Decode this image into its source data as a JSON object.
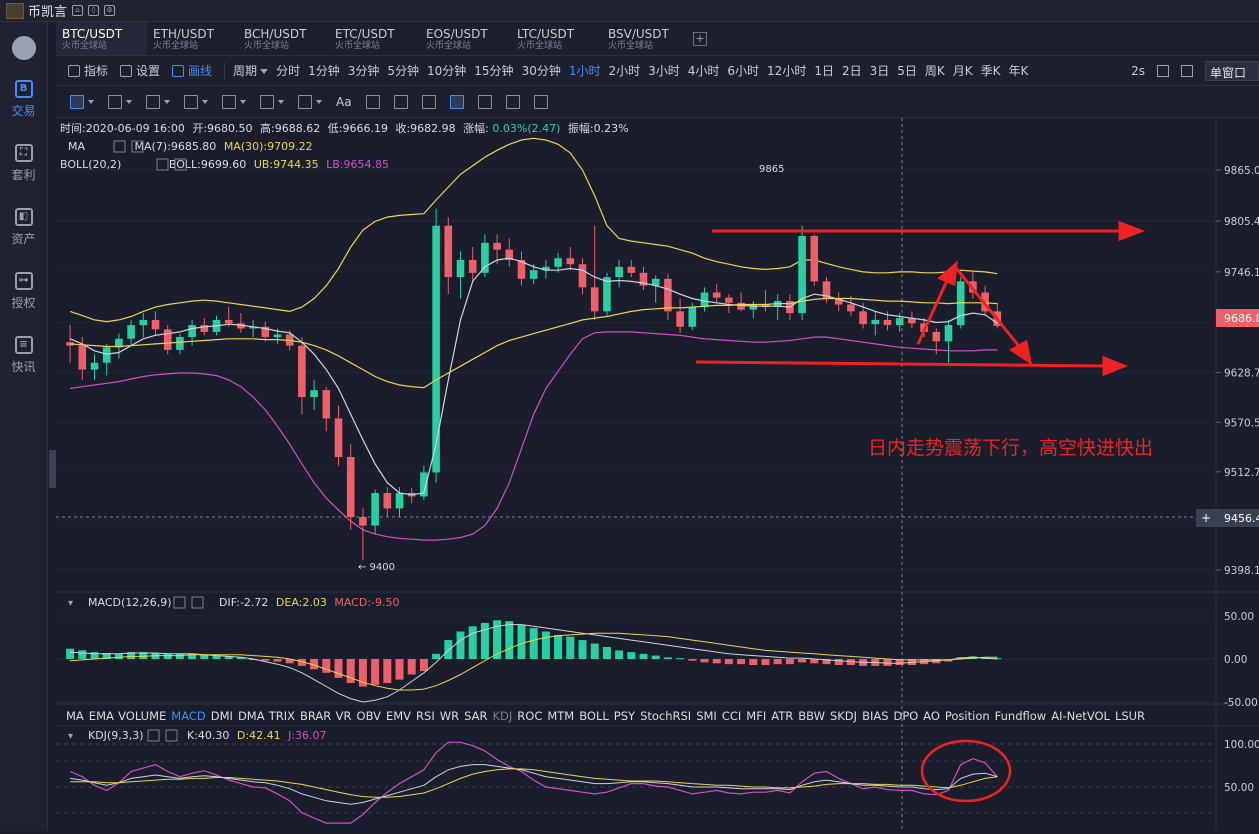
{
  "app_title": "币凯言",
  "sidebar": [
    {
      "icon": "exchange-icon",
      "glyph": "B",
      "label": "交易",
      "active": true
    },
    {
      "icon": "arbitrage-icon",
      "glyph": "⛶",
      "label": "套利",
      "active": false
    },
    {
      "icon": "assets-icon",
      "glyph": "◧",
      "label": "资产",
      "active": false
    },
    {
      "icon": "authorize-icon",
      "glyph": "⊶",
      "label": "授权",
      "active": false
    },
    {
      "icon": "news-icon",
      "glyph": "≡",
      "label": "快讯",
      "active": false
    }
  ],
  "tabs": [
    {
      "symbol": "BTC/USDT",
      "sub": "火币全球站",
      "active": true
    },
    {
      "symbol": "ETH/USDT",
      "sub": "火币全球站",
      "active": false
    },
    {
      "symbol": "BCH/USDT",
      "sub": "火币全球站",
      "active": false
    },
    {
      "symbol": "ETC/USDT",
      "sub": "火币全球站",
      "active": false
    },
    {
      "symbol": "EOS/USDT",
      "sub": "火币全球站",
      "active": false
    },
    {
      "symbol": "LTC/USDT",
      "sub": "火币全球站",
      "active": false
    },
    {
      "symbol": "BSV/USDT",
      "sub": "火币全球站",
      "active": false
    }
  ],
  "toolbar": {
    "indicator": "指标",
    "settings": "设置",
    "draw": "画线",
    "period": "周期",
    "periods": [
      "分时",
      "1分钟",
      "3分钟",
      "5分钟",
      "10分钟",
      "15分钟",
      "30分钟",
      "1小时",
      "2小时",
      "3小时",
      "4小时",
      "6小时",
      "12小时",
      "1日",
      "2日",
      "3日",
      "5日",
      "周K",
      "月K",
      "季K",
      "年K"
    ],
    "active_period": "1小时",
    "refresh": "2s",
    "window": "单窗口"
  },
  "drawbar": {
    "text_tool": "Aa"
  },
  "info": {
    "time": "时间:2020-06-09 16:00",
    "open": "开:9680.50",
    "high": "高:9688.62",
    "low": "低:9666.19",
    "close": "收:9682.98",
    "change_label": "涨幅:",
    "change_value": "0.03%(2.47)",
    "amp": "振幅:0.23%"
  },
  "ma_line": {
    "name": "MA",
    "ma7": "MA(7):9685.80",
    "ma30": "MA(30):9709.22"
  },
  "boll_line": {
    "name": "BOLL(20,2)",
    "boll": "BOLL:9699.60",
    "ub": "UB:9744.35",
    "lb": "LB:9654.85"
  },
  "price_axis": [
    "9865.0",
    "9805.4",
    "9746.1",
    "9686.8",
    "9628.7",
    "9570.5",
    "9512.7",
    "9456.4",
    "9398.1"
  ],
  "current_price": "9686.8",
  "cursor_price": "9456.4",
  "high_mark": "9865",
  "low_mark": "← 9400",
  "annotation": "日内走势震荡下行，高空快进快出",
  "macd": {
    "name": "MACD(12,26,9)",
    "dif": "DIF:-2.72",
    "dea": "DEA:2.03",
    "macd": "MACD:-9.50",
    "axis": [
      "50.00",
      "0.00",
      "-50.00"
    ]
  },
  "indicators": [
    "MA",
    "EMA",
    "VOLUME",
    "MACD",
    "DMI",
    "DMA",
    "TRIX",
    "BRAR",
    "VR",
    "OBV",
    "EMV",
    "RSI",
    "WR",
    "SAR",
    "KDJ",
    "ROC",
    "MTM",
    "BOLL",
    "PSY",
    "StochRSI",
    "SMI",
    "CCI",
    "MFI",
    "ATR",
    "BBW",
    "SKDJ",
    "BIAS",
    "DPO",
    "AO",
    "Position",
    "Fundflow",
    "AI-NetVOL",
    "LSUR"
  ],
  "active_indicator": "MACD",
  "kdj": {
    "name": "KDJ(9,3,3)",
    "k": "K:40.30",
    "d": "D:42.41",
    "j": "J:36.07",
    "axis": [
      "100.00",
      "50.00"
    ]
  },
  "colors": {
    "up": "#26d0a0",
    "down": "#f05e6a",
    "accent": "#4a8cf7",
    "ma7": "#d0d4e0",
    "ma30": "#e8d84a",
    "boll_mid": "#d0d4e0",
    "ub": "#e8d84a",
    "lb": "#d24fc8",
    "arrow": "#ee2222"
  },
  "chart_data": {
    "type": "candlestick",
    "interval": "1小时",
    "date": "2020-06-09",
    "candles": [
      [
        9664,
        9684,
        9640,
        9660
      ],
      [
        9660,
        9670,
        9620,
        9632
      ],
      [
        9632,
        9650,
        9620,
        9640
      ],
      [
        9640,
        9662,
        9625,
        9658
      ],
      [
        9658,
        9674,
        9645,
        9668
      ],
      [
        9668,
        9690,
        9660,
        9684
      ],
      [
        9684,
        9698,
        9670,
        9690
      ],
      [
        9690,
        9700,
        9672,
        9679
      ],
      [
        9679,
        9684,
        9650,
        9655
      ],
      [
        9655,
        9674,
        9650,
        9670
      ],
      [
        9670,
        9690,
        9660,
        9684
      ],
      [
        9684,
        9692,
        9672,
        9676
      ],
      [
        9676,
        9695,
        9672,
        9690
      ],
      [
        9690,
        9705,
        9682,
        9686
      ],
      [
        9686,
        9698,
        9675,
        9680
      ],
      [
        9680,
        9690,
        9670,
        9682
      ],
      [
        9682,
        9688,
        9665,
        9670
      ],
      [
        9670,
        9680,
        9662,
        9673
      ],
      [
        9673,
        9678,
        9655,
        9660
      ],
      [
        9660,
        9670,
        9580,
        9600
      ],
      [
        9600,
        9620,
        9585,
        9608
      ],
      [
        9608,
        9612,
        9560,
        9575
      ],
      [
        9575,
        9590,
        9520,
        9530
      ],
      [
        9530,
        9545,
        9445,
        9460
      ],
      [
        9460,
        9470,
        9410,
        9450
      ],
      [
        9450,
        9492,
        9440,
        9488
      ],
      [
        9488,
        9495,
        9460,
        9470
      ],
      [
        9470,
        9495,
        9460,
        9488
      ],
      [
        9488,
        9494,
        9476,
        9484
      ],
      [
        9484,
        9520,
        9480,
        9512
      ],
      [
        9512,
        9820,
        9500,
        9800
      ],
      [
        9800,
        9810,
        9720,
        9740
      ],
      [
        9740,
        9770,
        9715,
        9760
      ],
      [
        9760,
        9775,
        9735,
        9745
      ],
      [
        9745,
        9790,
        9740,
        9780
      ],
      [
        9780,
        9790,
        9755,
        9772
      ],
      [
        9772,
        9785,
        9752,
        9760
      ],
      [
        9760,
        9770,
        9730,
        9738
      ],
      [
        9738,
        9755,
        9732,
        9748
      ],
      [
        9748,
        9760,
        9738,
        9752
      ],
      [
        9752,
        9768,
        9745,
        9762
      ],
      [
        9762,
        9775,
        9748,
        9755
      ],
      [
        9755,
        9762,
        9720,
        9728
      ],
      [
        9728,
        9800,
        9690,
        9700
      ],
      [
        9700,
        9745,
        9695,
        9740
      ],
      [
        9740,
        9760,
        9728,
        9752
      ],
      [
        9752,
        9760,
        9740,
        9745
      ],
      [
        9745,
        9752,
        9725,
        9730
      ],
      [
        9730,
        9742,
        9710,
        9738
      ],
      [
        9738,
        9744,
        9690,
        9700
      ],
      [
        9700,
        9715,
        9675,
        9682
      ],
      [
        9682,
        9710,
        9678,
        9705
      ],
      [
        9705,
        9728,
        9700,
        9722
      ],
      [
        9722,
        9732,
        9710,
        9716
      ],
      [
        9716,
        9720,
        9698,
        9710
      ],
      [
        9710,
        9722,
        9700,
        9702
      ],
      [
        9702,
        9712,
        9692,
        9708
      ],
      [
        9708,
        9725,
        9700,
        9705
      ],
      [
        9705,
        9720,
        9690,
        9712
      ],
      [
        9712,
        9720,
        9690,
        9698
      ],
      [
        9698,
        9800,
        9690,
        9788
      ],
      [
        9788,
        9790,
        9730,
        9735
      ],
      [
        9735,
        9740,
        9710,
        9715
      ],
      [
        9715,
        9722,
        9700,
        9708
      ],
      [
        9708,
        9718,
        9695,
        9700
      ],
      [
        9700,
        9710,
        9680,
        9685
      ],
      [
        9685,
        9700,
        9672,
        9690
      ],
      [
        9690,
        9700,
        9678,
        9684
      ],
      [
        9684,
        9698,
        9676,
        9692
      ],
      [
        9692,
        9700,
        9680,
        9686
      ],
      [
        9686,
        9692,
        9670,
        9676
      ],
      [
        9676,
        9680,
        9650,
        9665
      ],
      [
        9665,
        9690,
        9640,
        9684
      ],
      [
        9684,
        9740,
        9680,
        9735
      ],
      [
        9735,
        9748,
        9715,
        9722
      ],
      [
        9722,
        9730,
        9695,
        9700
      ],
      [
        9700,
        9710,
        9680,
        9683
      ]
    ],
    "ma7": [
      9668,
      9662,
      9654,
      9650,
      9652,
      9660,
      9668,
      9672,
      9674,
      9676,
      9680,
      9682,
      9683,
      9685,
      9684,
      9682,
      9680,
      9677,
      9675,
      9664,
      9650,
      9632,
      9610,
      9580,
      9550,
      9522,
      9500,
      9488,
      9486,
      9488,
      9545,
      9620,
      9690,
      9735,
      9752,
      9760,
      9762,
      9758,
      9752,
      9748,
      9748,
      9750,
      9748,
      9740,
      9735,
      9736,
      9735,
      9733,
      9730,
      9726,
      9720,
      9715,
      9712,
      9710,
      9708,
      9707,
      9706,
      9706,
      9706,
      9705,
      9715,
      9720,
      9718,
      9714,
      9710,
      9705,
      9700,
      9696,
      9694,
      9692,
      9690,
      9687,
      9688,
      9695,
      9698,
      9696,
      9686
    ],
    "ma30": [
      9662,
      9661,
      9660,
      9659,
      9659,
      9660,
      9661,
      9662,
      9663,
      9664,
      9665,
      9666,
      9667,
      9668,
      9668,
      9668,
      9667,
      9667,
      9666,
      9664,
      9660,
      9655,
      9648,
      9640,
      9632,
      9624,
      9618,
      9614,
      9612,
      9611,
      9620,
      9628,
      9636,
      9644,
      9652,
      9660,
      9666,
      9670,
      9674,
      9678,
      9682,
      9686,
      9690,
      9692,
      9694,
      9697,
      9700,
      9702,
      9703,
      9704,
      9704,
      9705,
      9706,
      9707,
      9707,
      9708,
      9708,
      9708,
      9709,
      9709,
      9712,
      9714,
      9715,
      9715,
      9715,
      9714,
      9713,
      9712,
      9712,
      9711,
      9710,
      9710,
      9709,
      9710,
      9710,
      9710,
      9709
    ],
    "ub": [
      9700,
      9695,
      9690,
      9688,
      9690,
      9694,
      9700,
      9705,
      9708,
      9710,
      9712,
      9713,
      9712,
      9710,
      9708,
      9706,
      9704,
      9702,
      9700,
      9705,
      9715,
      9730,
      9750,
      9775,
      9795,
      9805,
      9810,
      9812,
      9813,
      9814,
      9830,
      9845,
      9860,
      9870,
      9880,
      9888,
      9895,
      9900,
      9902,
      9900,
      9895,
      9885,
      9865,
      9835,
      9800,
      9785,
      9782,
      9780,
      9778,
      9776,
      9772,
      9768,
      9762,
      9758,
      9755,
      9752,
      9750,
      9749,
      9750,
      9752,
      9760,
      9760,
      9756,
      9752,
      9749,
      9746,
      9745,
      9745,
      9746,
      9746,
      9745,
      9745,
      9746,
      9748,
      9747,
      9746,
      9744
    ],
    "lb": [
      9610,
      9612,
      9614,
      9616,
      9618,
      9621,
      9624,
      9626,
      9627,
      9628,
      9628,
      9627,
      9625,
      9620,
      9612,
      9600,
      9585,
      9566,
      9545,
      9522,
      9500,
      9482,
      9468,
      9455,
      9445,
      9440,
      9437,
      9435,
      9434,
      9433,
      9433,
      9434,
      9436,
      9440,
      9450,
      9470,
      9500,
      9540,
      9580,
      9610,
      9630,
      9650,
      9668,
      9675,
      9676,
      9676,
      9676,
      9675,
      9674,
      9673,
      9672,
      9670,
      9668,
      9667,
      9666,
      9665,
      9664,
      9664,
      9665,
      9666,
      9668,
      9670,
      9670,
      9668,
      9666,
      9664,
      9662,
      9660,
      9658,
      9657,
      9656,
      9655,
      9654,
      9654,
      9654,
      9655,
      9655
    ],
    "macd_hist": [
      12,
      10,
      8,
      7,
      6,
      8,
      8,
      7,
      6,
      6,
      6,
      5,
      4,
      3,
      2,
      0,
      -2,
      -3,
      -5,
      -8,
      -12,
      -16,
      -22,
      -28,
      -32,
      -30,
      -28,
      -24,
      -18,
      -14,
      6,
      22,
      32,
      38,
      42,
      45,
      44,
      40,
      36,
      32,
      28,
      26,
      22,
      18,
      14,
      10,
      8,
      6,
      4,
      2,
      1,
      -2,
      -4,
      -5,
      -6,
      -6,
      -7,
      -7,
      -6,
      -6,
      -4,
      -5,
      -6,
      -7,
      -7,
      -8,
      -8,
      -8,
      -7,
      -7,
      -6,
      -5,
      -3,
      2,
      3,
      2,
      1
    ],
    "macd_dif": [
      8,
      7,
      6,
      6,
      6,
      7,
      7,
      7,
      6,
      6,
      6,
      5,
      4,
      3,
      2,
      0,
      -3,
      -6,
      -10,
      -16,
      -24,
      -32,
      -40,
      -46,
      -50,
      -48,
      -44,
      -36,
      -26,
      -16,
      -4,
      10,
      22,
      30,
      34,
      38,
      40,
      40,
      38,
      36,
      34,
      32,
      30,
      28,
      26,
      24,
      22,
      20,
      18,
      16,
      14,
      12,
      10,
      8,
      6,
      5,
      4,
      3,
      2,
      1,
      1,
      0,
      -1,
      -2,
      -3,
      -4,
      -4,
      -5,
      -5,
      -4,
      -3,
      -2,
      -1,
      1,
      2,
      1,
      0
    ],
    "macd_dea": [
      -2,
      -1,
      0,
      1,
      2,
      3,
      3,
      4,
      4,
      4,
      5,
      5,
      5,
      5,
      5,
      4,
      3,
      2,
      0,
      -3,
      -7,
      -12,
      -17,
      -22,
      -27,
      -31,
      -34,
      -36,
      -36,
      -35,
      -31,
      -25,
      -18,
      -10,
      -2,
      6,
      12,
      18,
      22,
      25,
      27,
      28,
      29,
      30,
      30,
      30,
      29,
      28,
      27,
      26,
      24,
      22,
      20,
      18,
      16,
      14,
      12,
      10,
      9,
      8,
      7,
      6,
      5,
      4,
      3,
      2,
      1,
      0,
      -1,
      -1,
      -1,
      -1,
      -1,
      0,
      1,
      2,
      2
    ],
    "kdj_k": [
      60,
      58,
      55,
      52,
      55,
      60,
      62,
      64,
      62,
      60,
      62,
      63,
      62,
      60,
      58,
      56,
      55,
      52,
      48,
      42,
      38,
      34,
      32,
      30,
      32,
      36,
      40,
      44,
      48,
      52,
      62,
      70,
      74,
      76,
      76,
      74,
      72,
      70,
      66,
      62,
      60,
      58,
      56,
      54,
      54,
      55,
      56,
      56,
      55,
      54,
      52,
      50,
      50,
      50,
      49,
      48,
      48,
      48,
      48,
      47,
      52,
      56,
      58,
      56,
      54,
      52,
      52,
      51,
      50,
      50,
      48,
      47,
      48,
      60,
      65,
      66,
      62
    ],
    "kdj_d": [
      56,
      56,
      56,
      55,
      55,
      56,
      57,
      58,
      59,
      59,
      60,
      60,
      61,
      61,
      60,
      59,
      58,
      57,
      55,
      53,
      50,
      47,
      44,
      41,
      39,
      38,
      38,
      39,
      41,
      43,
      48,
      54,
      60,
      65,
      68,
      70,
      71,
      71,
      70,
      68,
      66,
      64,
      62,
      60,
      59,
      58,
      57,
      57,
      57,
      56,
      55,
      54,
      53,
      52,
      52,
      51,
      50,
      50,
      49,
      49,
      50,
      51,
      53,
      54,
      54,
      54,
      53,
      53,
      52,
      52,
      51,
      50,
      49,
      52,
      56,
      60,
      62
    ],
    "kdj_j": [
      68,
      62,
      52,
      46,
      55,
      68,
      72,
      76,
      68,
      62,
      66,
      69,
      64,
      58,
      54,
      50,
      49,
      42,
      34,
      20,
      14,
      8,
      8,
      8,
      18,
      32,
      44,
      54,
      62,
      70,
      90,
      102,
      102,
      98,
      92,
      82,
      74,
      68,
      58,
      50,
      48,
      46,
      44,
      42,
      44,
      49,
      54,
      54,
      51,
      50,
      46,
      42,
      44,
      46,
      43,
      42,
      44,
      44,
      46,
      43,
      56,
      66,
      68,
      60,
      54,
      48,
      50,
      47,
      46,
      46,
      42,
      41,
      46,
      76,
      83,
      78,
      62
    ]
  }
}
